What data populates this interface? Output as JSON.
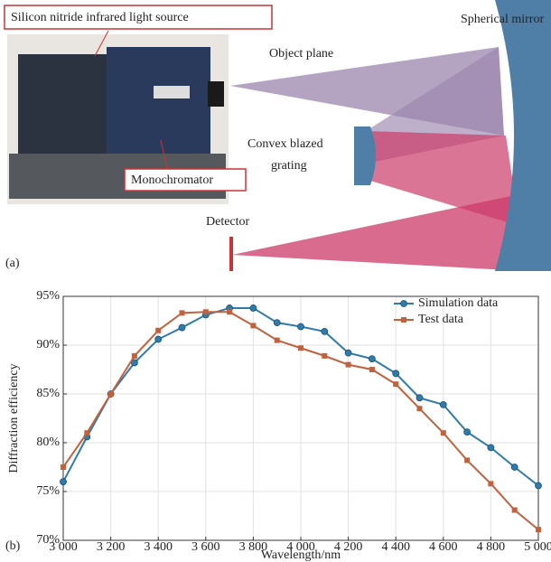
{
  "diagram": {
    "photo_label": "Silicon nitride infrared light source",
    "monochromator_label": "Monochromator",
    "object_plane": "Object plane",
    "spherical_mirror": "Spherical mirror",
    "grating_lines": [
      "Convex blazed",
      "grating"
    ],
    "detector": "Detector",
    "panel": "(a)"
  },
  "chart_data": {
    "type": "line",
    "panel": "(b)",
    "x_label": "Wavelength/nm",
    "y_label": "Diffraction efficiency",
    "x": [
      3000,
      3100,
      3200,
      3300,
      3400,
      3500,
      3600,
      3700,
      3800,
      3900,
      4000,
      4100,
      4200,
      4300,
      4400,
      4500,
      4600,
      4700,
      4800,
      4900,
      5000
    ],
    "series": [
      {
        "name": "Simulation data",
        "color": "#2f7bab",
        "marker": "circle",
        "values": [
          76.0,
          80.6,
          85.0,
          88.2,
          90.6,
          91.8,
          93.1,
          93.8,
          93.8,
          92.3,
          91.9,
          91.4,
          89.2,
          88.6,
          87.1,
          84.6,
          83.9,
          81.1,
          79.5,
          77.5,
          75.6
        ]
      },
      {
        "name": "Test data",
        "color": "#c1623c",
        "marker": "square",
        "values": [
          77.5,
          81.0,
          85.0,
          88.9,
          91.5,
          93.3,
          93.4,
          93.4,
          92.0,
          90.5,
          89.7,
          88.9,
          88.0,
          87.5,
          86.0,
          83.5,
          81.0,
          78.2,
          75.8,
          73.1,
          71.1
        ]
      }
    ],
    "xlim": [
      3000,
      5000
    ],
    "xticks": [
      {
        "value": 3000,
        "label": "3 000"
      },
      {
        "value": 3200,
        "label": "3 200"
      },
      {
        "value": 3400,
        "label": "3 400"
      },
      {
        "value": 3600,
        "label": "3 600"
      },
      {
        "value": 3800,
        "label": "3 800"
      },
      {
        "value": 4000,
        "label": "4 000"
      },
      {
        "value": 4200,
        "label": "4 200"
      },
      {
        "value": 4400,
        "label": "4 400"
      },
      {
        "value": 4600,
        "label": "4 600"
      },
      {
        "value": 4800,
        "label": "4 800"
      },
      {
        "value": 5000,
        "label": "5 000"
      }
    ],
    "ylim": [
      70,
      95
    ],
    "yticks": [
      {
        "value": 70,
        "label": "70%"
      },
      {
        "value": 75,
        "label": "75%"
      },
      {
        "value": 80,
        "label": "80%"
      },
      {
        "value": 85,
        "label": "85%"
      },
      {
        "value": 90,
        "label": "90%"
      },
      {
        "value": 95,
        "label": "95%"
      }
    ],
    "grid": true,
    "legend": "upper-right"
  }
}
